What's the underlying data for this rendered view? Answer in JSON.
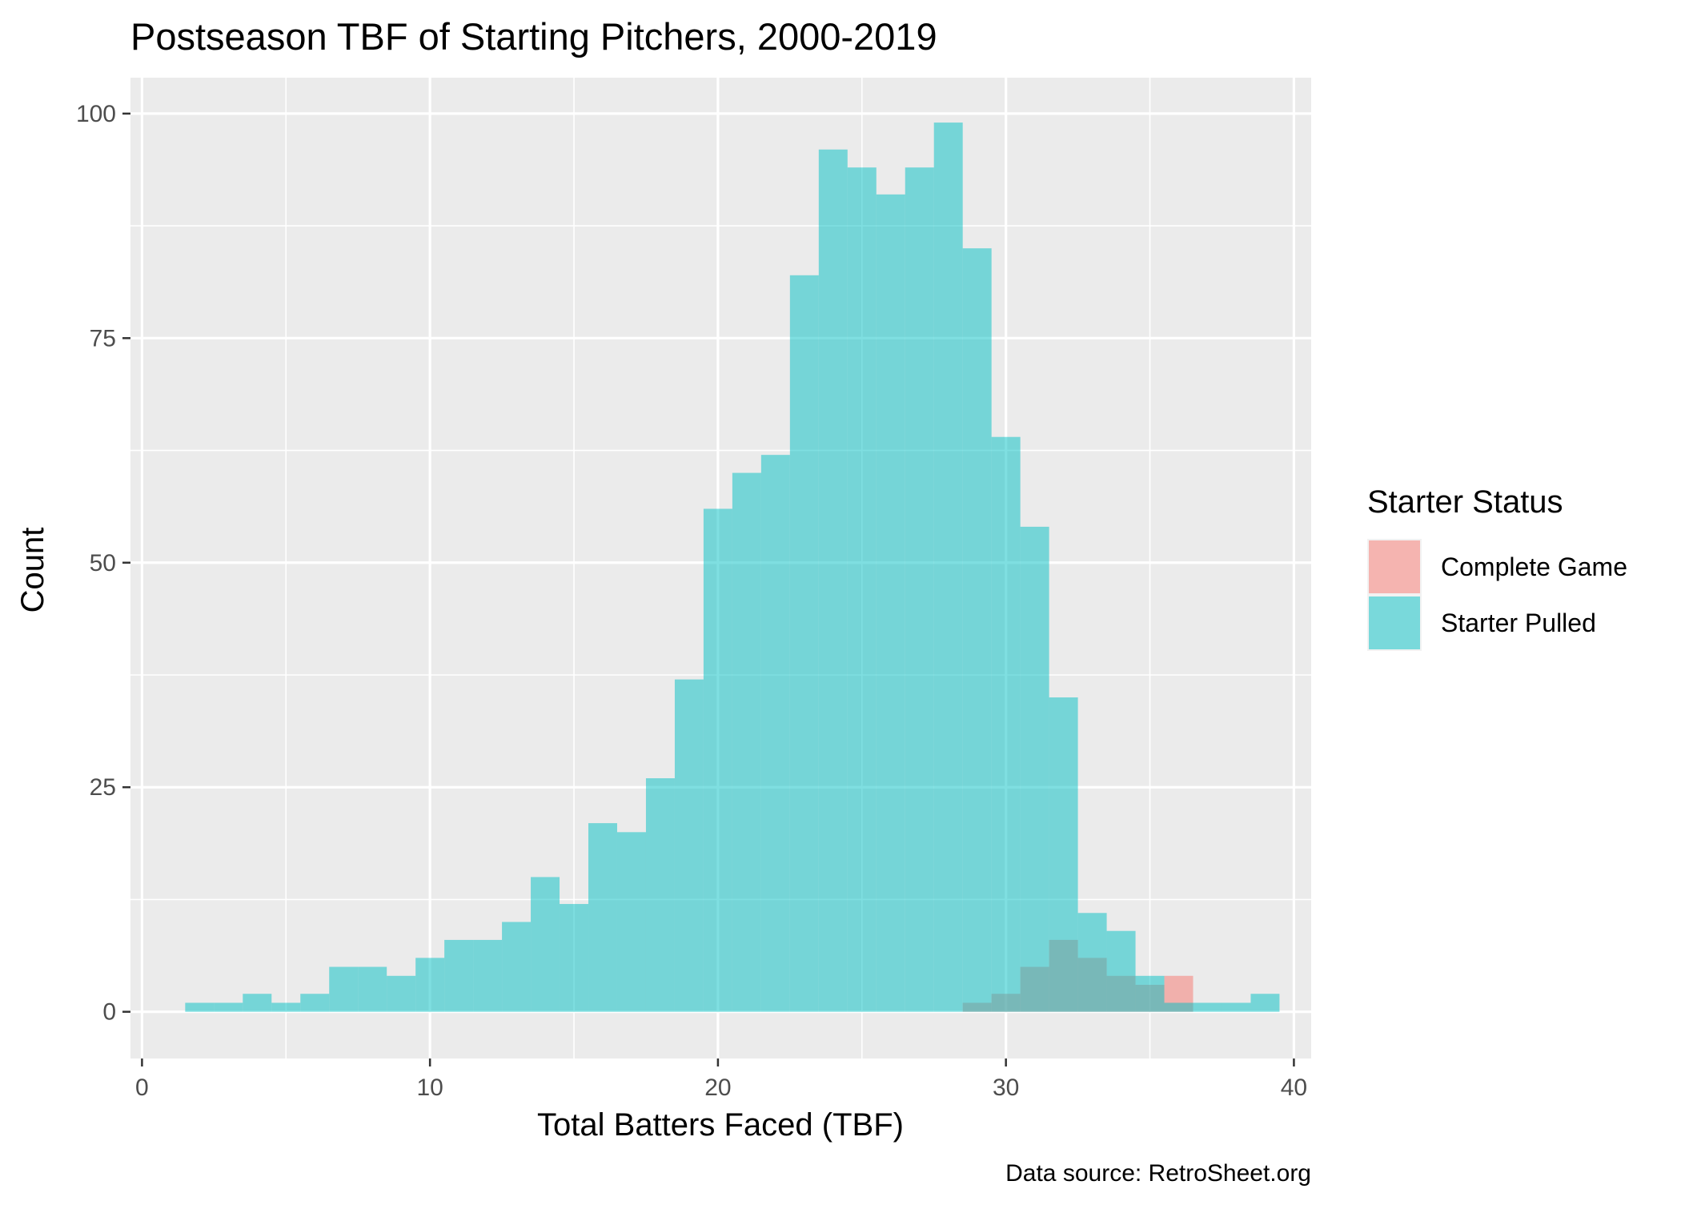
{
  "chart_data": {
    "type": "bar",
    "title": "Postseason TBF of Starting Pitchers, 2000-2019",
    "xlabel": "Total Batters Faced (TBF)",
    "ylabel": "Count",
    "caption": "Data source: RetroSheet.org",
    "xlim": [
      -0.4,
      40.6
    ],
    "ylim": [
      -5.2,
      104
    ],
    "x_ticks": [
      0,
      10,
      20,
      30,
      40
    ],
    "y_ticks": [
      0,
      25,
      50,
      75,
      100
    ],
    "bin_width": 1,
    "grid": true,
    "legend": {
      "title": "Starter Status",
      "position": "right"
    },
    "x": [
      2,
      3,
      4,
      5,
      6,
      7,
      8,
      9,
      10,
      11,
      12,
      13,
      14,
      15,
      16,
      17,
      18,
      19,
      20,
      21,
      22,
      23,
      24,
      25,
      26,
      27,
      28,
      29,
      30,
      31,
      32,
      33,
      34,
      35,
      36,
      37,
      38,
      39
    ],
    "series": [
      {
        "name": "Complete Game",
        "color": "#F8766D",
        "values": [
          0,
          0,
          0,
          0,
          0,
          0,
          0,
          0,
          0,
          0,
          0,
          0,
          0,
          0,
          0,
          0,
          0,
          0,
          0,
          0,
          0,
          0,
          0,
          0,
          0,
          0,
          0,
          1,
          2,
          5,
          8,
          6,
          4,
          3,
          4,
          0,
          0,
          0
        ]
      },
      {
        "name": "Starter Pulled",
        "color": "#00BFC4",
        "values": [
          1,
          1,
          2,
          1,
          2,
          5,
          5,
          4,
          6,
          8,
          8,
          10,
          15,
          12,
          21,
          20,
          26,
          37,
          56,
          60,
          62,
          82,
          96,
          94,
          91,
          94,
          99,
          85,
          64,
          54,
          35,
          11,
          9,
          4,
          1,
          1,
          1,
          2
        ]
      }
    ]
  }
}
